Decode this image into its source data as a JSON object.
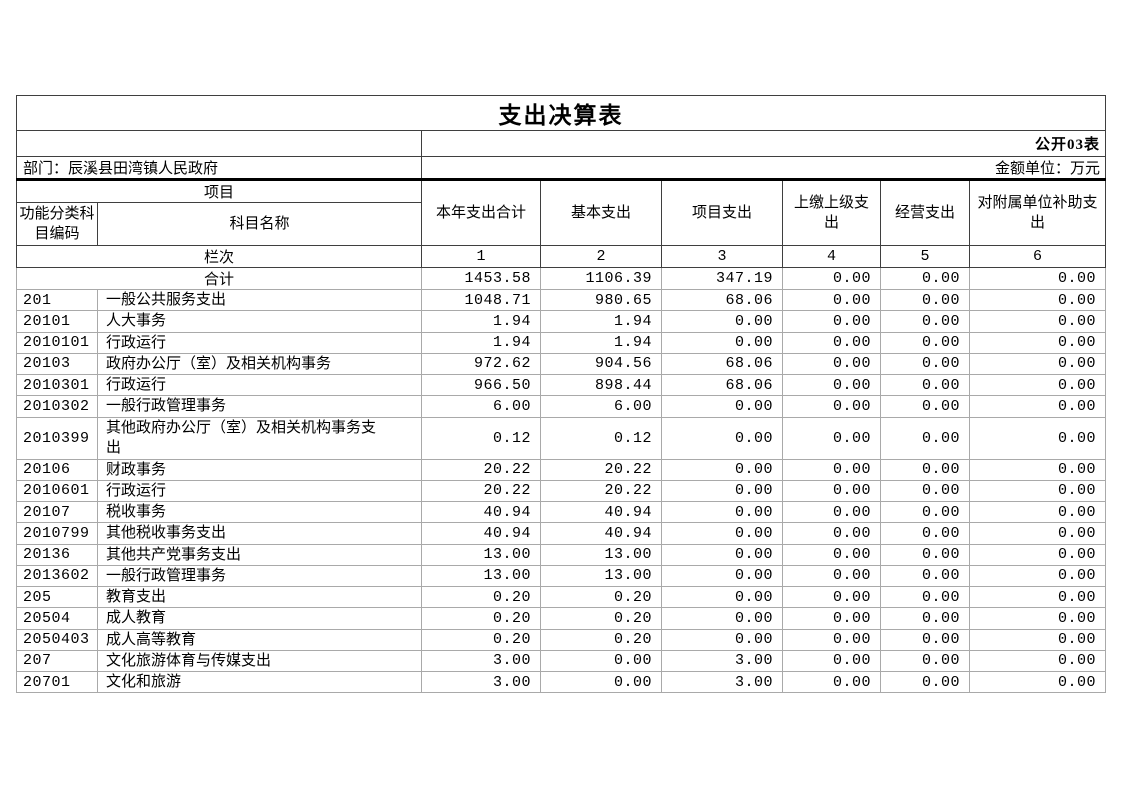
{
  "table": {
    "title": "支出决算表",
    "form_label": "公开03表",
    "department": "部门：辰溪县田湾镇人民政府",
    "unit_label": "金额单位：万元",
    "header": {
      "project": "项目",
      "code_label": "功能分类科目编码",
      "subject_label": "科目名称",
      "columns": [
        "本年支出合计",
        "基本支出",
        "项目支出",
        "上缴上级支出",
        "经营支出",
        "对附属单位补助支出"
      ],
      "row_index_label": "栏次",
      "column_indexes": [
        "1",
        "2",
        "3",
        "4",
        "5",
        "6"
      ]
    },
    "rows": [
      {
        "code": "",
        "name": "合计",
        "merged": true,
        "values": [
          "1453.58",
          "1106.39",
          "347.19",
          "0.00",
          "0.00",
          "0.00"
        ]
      },
      {
        "code": "201",
        "name": "一般公共服务支出",
        "values": [
          "1048.71",
          "980.65",
          "68.06",
          "0.00",
          "0.00",
          "0.00"
        ]
      },
      {
        "code": "20101",
        "name": "人大事务",
        "values": [
          "1.94",
          "1.94",
          "0.00",
          "0.00",
          "0.00",
          "0.00"
        ]
      },
      {
        "code": "2010101",
        "name": "行政运行",
        "values": [
          "1.94",
          "1.94",
          "0.00",
          "0.00",
          "0.00",
          "0.00"
        ]
      },
      {
        "code": "20103",
        "name": "政府办公厅（室）及相关机构事务",
        "values": [
          "972.62",
          "904.56",
          "68.06",
          "0.00",
          "0.00",
          "0.00"
        ]
      },
      {
        "code": "2010301",
        "name": "行政运行",
        "values": [
          "966.50",
          "898.44",
          "68.06",
          "0.00",
          "0.00",
          "0.00"
        ]
      },
      {
        "code": "2010302",
        "name": "一般行政管理事务",
        "values": [
          "6.00",
          "6.00",
          "0.00",
          "0.00",
          "0.00",
          "0.00"
        ]
      },
      {
        "code": "2010399",
        "name": "其他政府办公厅（室）及相关机构事务支出",
        "tall": true,
        "values": [
          "0.12",
          "0.12",
          "0.00",
          "0.00",
          "0.00",
          "0.00"
        ]
      },
      {
        "code": "20106",
        "name": "财政事务",
        "values": [
          "20.22",
          "20.22",
          "0.00",
          "0.00",
          "0.00",
          "0.00"
        ]
      },
      {
        "code": "2010601",
        "name": "行政运行",
        "values": [
          "20.22",
          "20.22",
          "0.00",
          "0.00",
          "0.00",
          "0.00"
        ]
      },
      {
        "code": "20107",
        "name": "税收事务",
        "values": [
          "40.94",
          "40.94",
          "0.00",
          "0.00",
          "0.00",
          "0.00"
        ]
      },
      {
        "code": "2010799",
        "name": "其他税收事务支出",
        "values": [
          "40.94",
          "40.94",
          "0.00",
          "0.00",
          "0.00",
          "0.00"
        ]
      },
      {
        "code": "20136",
        "name": "其他共产党事务支出",
        "values": [
          "13.00",
          "13.00",
          "0.00",
          "0.00",
          "0.00",
          "0.00"
        ]
      },
      {
        "code": "2013602",
        "name": "一般行政管理事务",
        "values": [
          "13.00",
          "13.00",
          "0.00",
          "0.00",
          "0.00",
          "0.00"
        ]
      },
      {
        "code": "205",
        "name": "教育支出",
        "values": [
          "0.20",
          "0.20",
          "0.00",
          "0.00",
          "0.00",
          "0.00"
        ]
      },
      {
        "code": "20504",
        "name": "成人教育",
        "values": [
          "0.20",
          "0.20",
          "0.00",
          "0.00",
          "0.00",
          "0.00"
        ]
      },
      {
        "code": "2050403",
        "name": "成人高等教育",
        "values": [
          "0.20",
          "0.20",
          "0.00",
          "0.00",
          "0.00",
          "0.00"
        ]
      },
      {
        "code": "207",
        "name": "文化旅游体育与传媒支出",
        "values": [
          "3.00",
          "0.00",
          "3.00",
          "0.00",
          "0.00",
          "0.00"
        ]
      },
      {
        "code": "20701",
        "name": "文化和旅游",
        "values": [
          "3.00",
          "0.00",
          "3.00",
          "0.00",
          "0.00",
          "0.00"
        ]
      }
    ]
  }
}
